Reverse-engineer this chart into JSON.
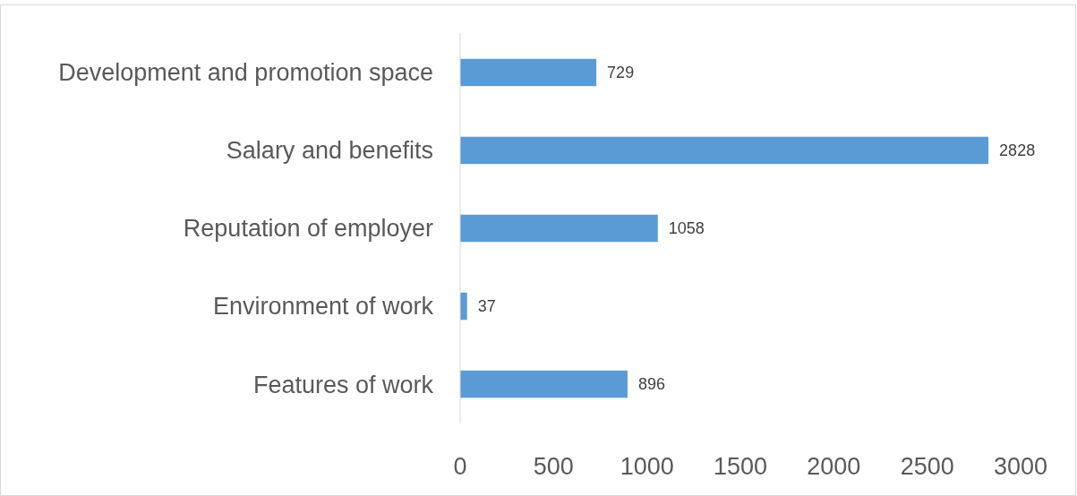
{
  "chart_data": {
    "type": "bar",
    "orientation": "horizontal",
    "categories": [
      "Development and promotion space",
      "Salary and benefits",
      "Reputation of employer",
      "Environment of work",
      "Features of work"
    ],
    "values": [
      729,
      2828,
      1058,
      37,
      896
    ],
    "color": "#5b9bd5",
    "data_labels": true,
    "xlim": [
      0,
      3000
    ],
    "xticks": [
      0,
      500,
      1000,
      1500,
      2000,
      2500,
      3000
    ],
    "grid": false
  }
}
